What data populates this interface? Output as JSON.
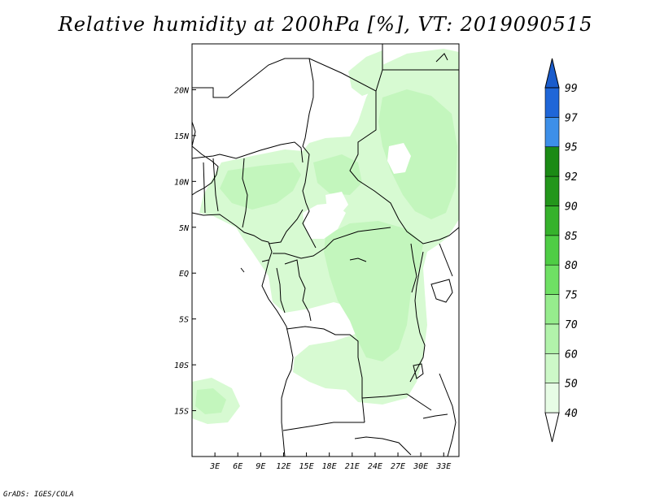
{
  "title": "Relative humidity at 200hPa [%], VT: 2019090515",
  "credit": "GrADS: IGES/COLA",
  "map": {
    "lon_range": [
      0,
      35
    ],
    "lat_range": [
      -20,
      25
    ],
    "lon_ticks": [
      {
        "value": 3,
        "label": "3E"
      },
      {
        "value": 6,
        "label": "6E"
      },
      {
        "value": 9,
        "label": "9E"
      },
      {
        "value": 12,
        "label": "12E"
      },
      {
        "value": 15,
        "label": "15E"
      },
      {
        "value": 18,
        "label": "18E"
      },
      {
        "value": 21,
        "label": "21E"
      },
      {
        "value": 24,
        "label": "24E"
      },
      {
        "value": 27,
        "label": "27E"
      },
      {
        "value": 30,
        "label": "30E"
      },
      {
        "value": 33,
        "label": "33E"
      }
    ],
    "lat_ticks": [
      {
        "value": 20,
        "label": "20N"
      },
      {
        "value": 15,
        "label": "15N"
      },
      {
        "value": 10,
        "label": "10N"
      },
      {
        "value": 5,
        "label": "5N"
      },
      {
        "value": 0,
        "label": "EQ"
      },
      {
        "value": -5,
        "label": "5S"
      },
      {
        "value": -10,
        "label": "10S"
      },
      {
        "value": -15,
        "label": "15S"
      }
    ]
  },
  "colorbar": {
    "levels": [
      {
        "label": "40",
        "color": "#ffffff"
      },
      {
        "label": "50",
        "color": "#e7fce5"
      },
      {
        "label": "60",
        "color": "#cdf8c8"
      },
      {
        "label": "70",
        "color": "#b2f3ab"
      },
      {
        "label": "75",
        "color": "#96ec8d"
      },
      {
        "label": "80",
        "color": "#6fe064"
      },
      {
        "label": "85",
        "color": "#4fcd45"
      },
      {
        "label": "90",
        "color": "#36b22c"
      },
      {
        "label": "92",
        "color": "#23961b"
      },
      {
        "label": "95",
        "color": "#1b8a15"
      },
      {
        "label": "97",
        "color": "#3d8fe8"
      },
      {
        "label": "99",
        "color": "#1f66d8"
      }
    ],
    "top_color": "#1a5ccc"
  }
}
